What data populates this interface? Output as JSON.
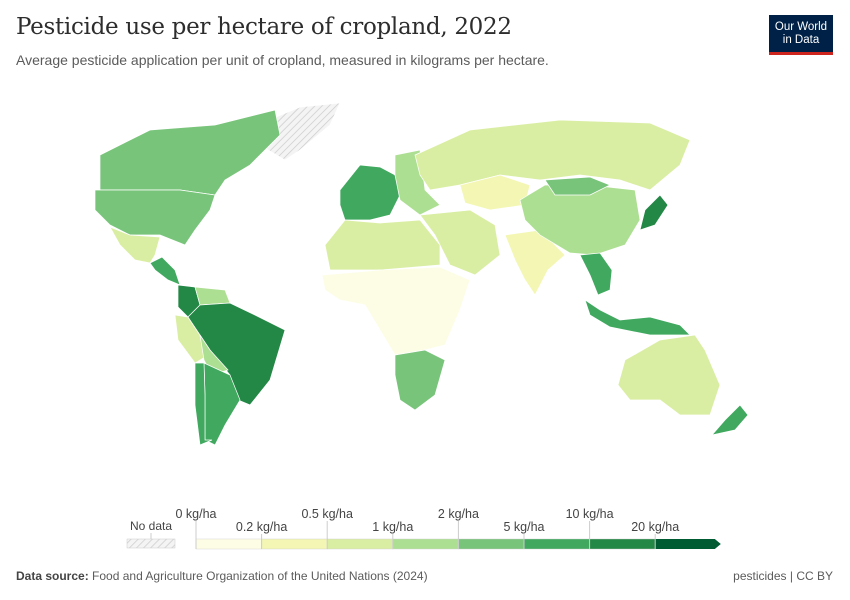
{
  "header": {
    "title": "Pesticide use per hectare of cropland, 2022",
    "subtitle": "Average pesticide application per unit of cropland, measured in kilograms per hectare.",
    "logo": "Our World in Data"
  },
  "legend": {
    "no_data_label": "No data",
    "bins": [
      {
        "label_low": "0 kg/ha",
        "color": "#fdfde6"
      },
      {
        "label_low": "0.2 kg/ha",
        "color": "#f3f7b3"
      },
      {
        "label_low": "0.5 kg/ha",
        "color": "#daeea3"
      },
      {
        "label_low": "1 kg/ha",
        "color": "#addf93"
      },
      {
        "label_low": "2 kg/ha",
        "color": "#79c47b"
      },
      {
        "label_low": "5 kg/ha",
        "color": "#40a95f"
      },
      {
        "label_low": "10 kg/ha",
        "color": "#238745"
      },
      {
        "label_low": "20 kg/ha",
        "color": "#005a32"
      }
    ]
  },
  "map": {
    "no_data_color": "#e8e8e8",
    "regions": [
      {
        "name": "Greenland",
        "bin": -1
      },
      {
        "name": "Canada",
        "bin": 4
      },
      {
        "name": "United States",
        "bin": 4
      },
      {
        "name": "Mexico",
        "bin": 2
      },
      {
        "name": "Central America",
        "bin": 5
      },
      {
        "name": "Colombia",
        "bin": 6
      },
      {
        "name": "Venezuela",
        "bin": 3
      },
      {
        "name": "Peru",
        "bin": 2
      },
      {
        "name": "Brazil",
        "bin": 6
      },
      {
        "name": "Bolivia",
        "bin": 3
      },
      {
        "name": "Argentina",
        "bin": 5
      },
      {
        "name": "Chile",
        "bin": 5
      },
      {
        "name": "Western Europe",
        "bin": 5
      },
      {
        "name": "Eastern Europe",
        "bin": 3
      },
      {
        "name": "Russia",
        "bin": 2
      },
      {
        "name": "Kazakhstan",
        "bin": 1
      },
      {
        "name": "Middle East",
        "bin": 2
      },
      {
        "name": "North Africa",
        "bin": 2
      },
      {
        "name": "Sub-Saharan Africa",
        "bin": 0
      },
      {
        "name": "Southern Africa",
        "bin": 4
      },
      {
        "name": "India",
        "bin": 1
      },
      {
        "name": "China",
        "bin": 3
      },
      {
        "name": "Mongolia",
        "bin": 4
      },
      {
        "name": "Southeast Asia",
        "bin": 5
      },
      {
        "name": "Japan",
        "bin": 6
      },
      {
        "name": "Indonesia",
        "bin": 5
      },
      {
        "name": "Australia",
        "bin": 2
      },
      {
        "name": "New Zealand",
        "bin": 5
      }
    ]
  },
  "footer": {
    "source_label": "Data source:",
    "source": "Food and Agriculture Organization of the United Nations (2024)",
    "license": "pesticides | CC BY"
  }
}
